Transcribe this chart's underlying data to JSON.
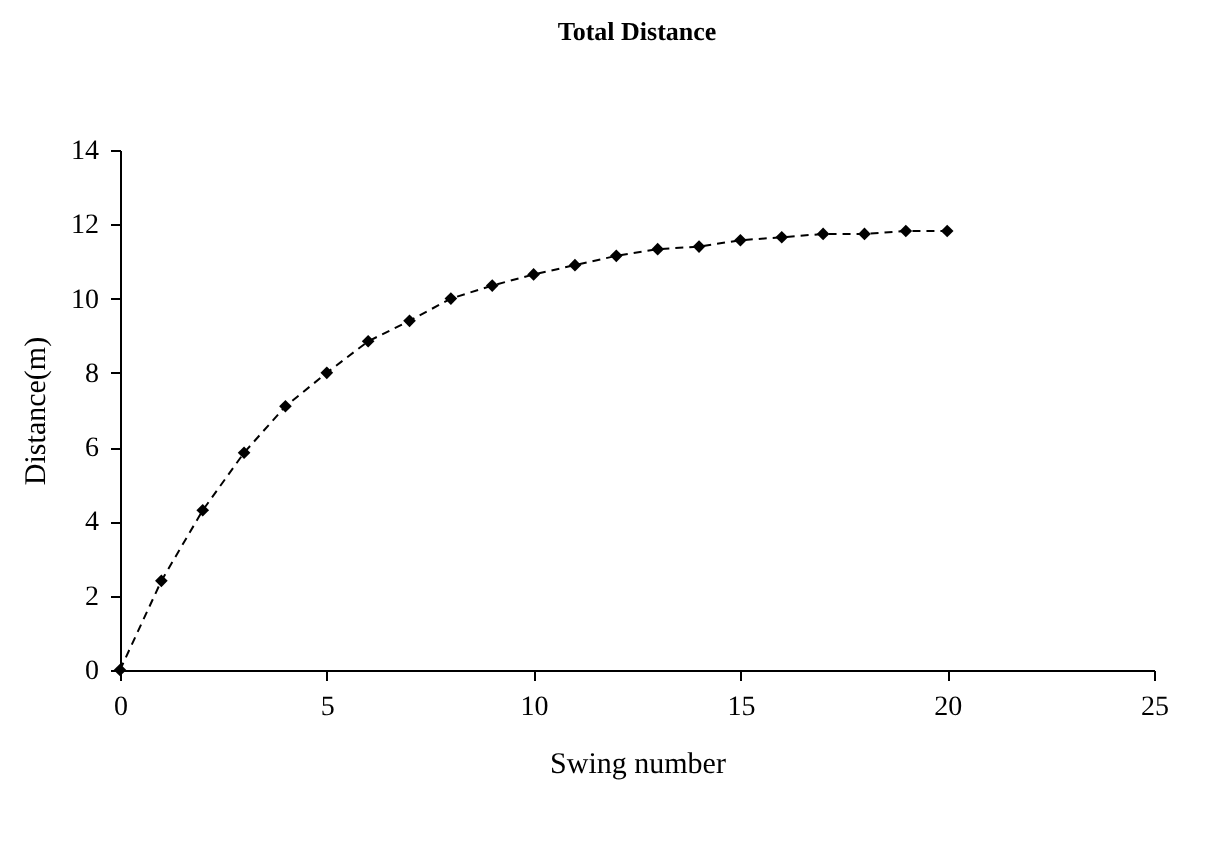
{
  "chart_data": {
    "type": "line",
    "title": "Total Distance",
    "xlabel": "Swing number",
    "ylabel": "Distance(m)",
    "x": [
      0,
      1,
      2,
      3,
      4,
      5,
      6,
      7,
      8,
      9,
      10,
      11,
      12,
      13,
      14,
      15,
      16,
      17,
      18,
      19,
      20
    ],
    "series": [
      {
        "color": "#000000",
        "values": [
          0,
          2.4,
          4.3,
          5.85,
          7.1,
          8.0,
          8.85,
          9.4,
          10.0,
          10.35,
          10.65,
          10.9,
          11.15,
          11.33,
          11.4,
          11.57,
          11.65,
          11.74,
          11.74,
          11.82,
          11.82
        ]
      }
    ],
    "xlim": [
      0,
      25
    ],
    "xticks": [
      0,
      5,
      10,
      15,
      20,
      25
    ],
    "ylim": [
      0,
      14
    ],
    "yticks": [
      0,
      2,
      4,
      6,
      8,
      10,
      12,
      14
    ],
    "grid": false,
    "legend": false,
    "marker": "diamond",
    "line_style": "dashed"
  }
}
